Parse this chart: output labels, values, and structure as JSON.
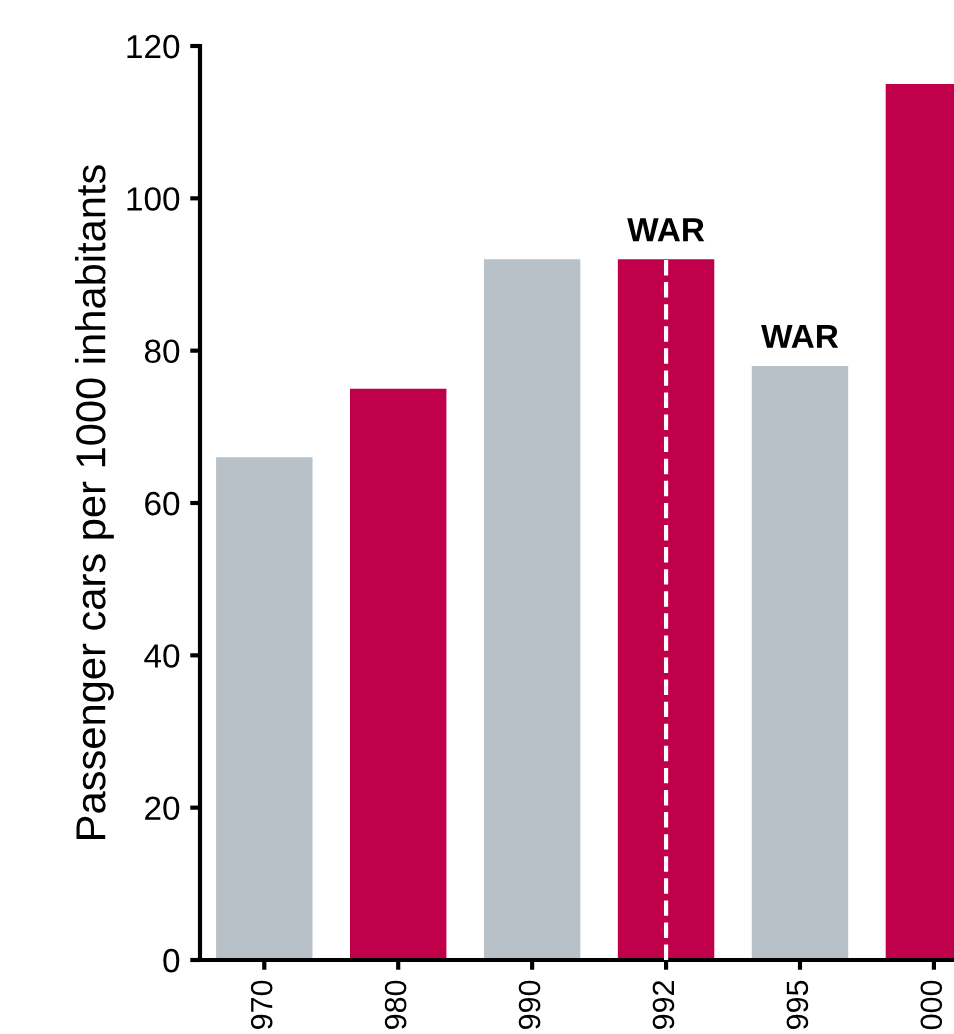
{
  "chart_data": {
    "type": "bar",
    "ylabel": "Passenger cars per 1000 inhabitants",
    "categories": [
      "970",
      "980",
      "990",
      "992",
      "995",
      "000"
    ],
    "values": [
      66,
      75,
      92,
      92,
      78,
      115
    ],
    "colors": [
      "#b9c1c8",
      "#c0004a",
      "#b9c1c8",
      "#c0004a",
      "#b9c1c8",
      "#c0004a"
    ],
    "ylim": [
      0,
      120
    ],
    "yticks": [
      0,
      20,
      40,
      60,
      80,
      100,
      120
    ],
    "grid": false,
    "ref_lines": [
      {
        "axis": "x",
        "value": "992",
        "color": "#ffffff",
        "line_style": "dashed"
      }
    ],
    "annotations": [
      {
        "text": "WAR",
        "x": "992",
        "y": 92
      },
      {
        "text": "WAR",
        "x": "995",
        "y": 78
      }
    ]
  }
}
